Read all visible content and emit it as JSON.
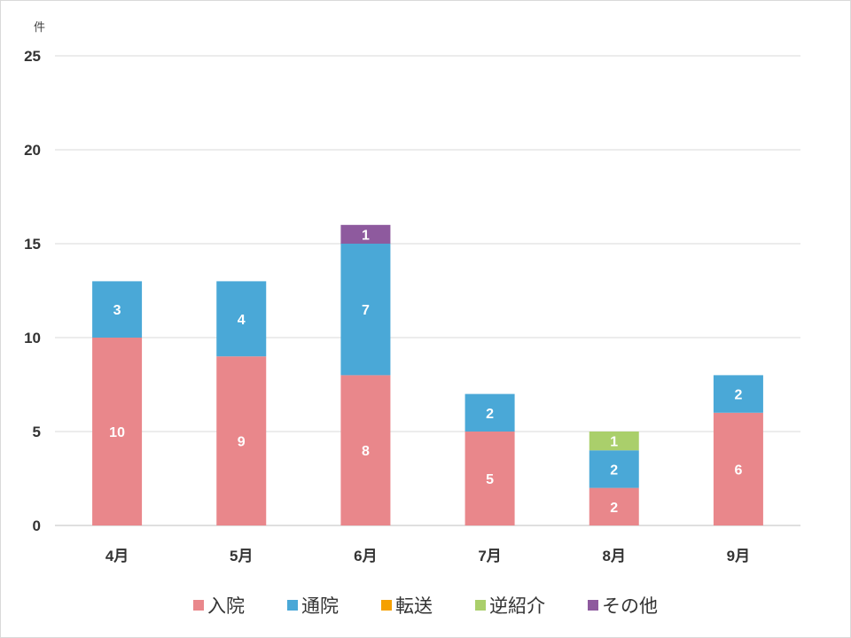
{
  "chart_data": {
    "type": "bar",
    "stacked": true,
    "title": "",
    "ylabel": "件",
    "xlabel": "",
    "categories": [
      "4月",
      "5月",
      "6月",
      "7月",
      "8月",
      "9月"
    ],
    "ylim": [
      0,
      25
    ],
    "yticks": [
      0,
      5,
      10,
      15,
      20,
      25
    ],
    "grid": true,
    "legend_position": "bottom",
    "series": [
      {
        "name": "入院",
        "color": "#E9878B",
        "values": [
          10,
          9,
          8,
          5,
          2,
          6
        ]
      },
      {
        "name": "通院",
        "color": "#4AA8D7",
        "values": [
          3,
          4,
          7,
          2,
          2,
          2
        ]
      },
      {
        "name": "転送",
        "color": "#F5A000",
        "values": [
          0,
          0,
          0,
          0,
          0,
          0
        ]
      },
      {
        "name": "逆紹介",
        "color": "#AACF6B",
        "values": [
          0,
          0,
          0,
          0,
          1,
          0
        ]
      },
      {
        "name": "その他",
        "color": "#8E5A9E",
        "values": [
          0,
          0,
          1,
          0,
          0,
          0
        ]
      }
    ]
  }
}
